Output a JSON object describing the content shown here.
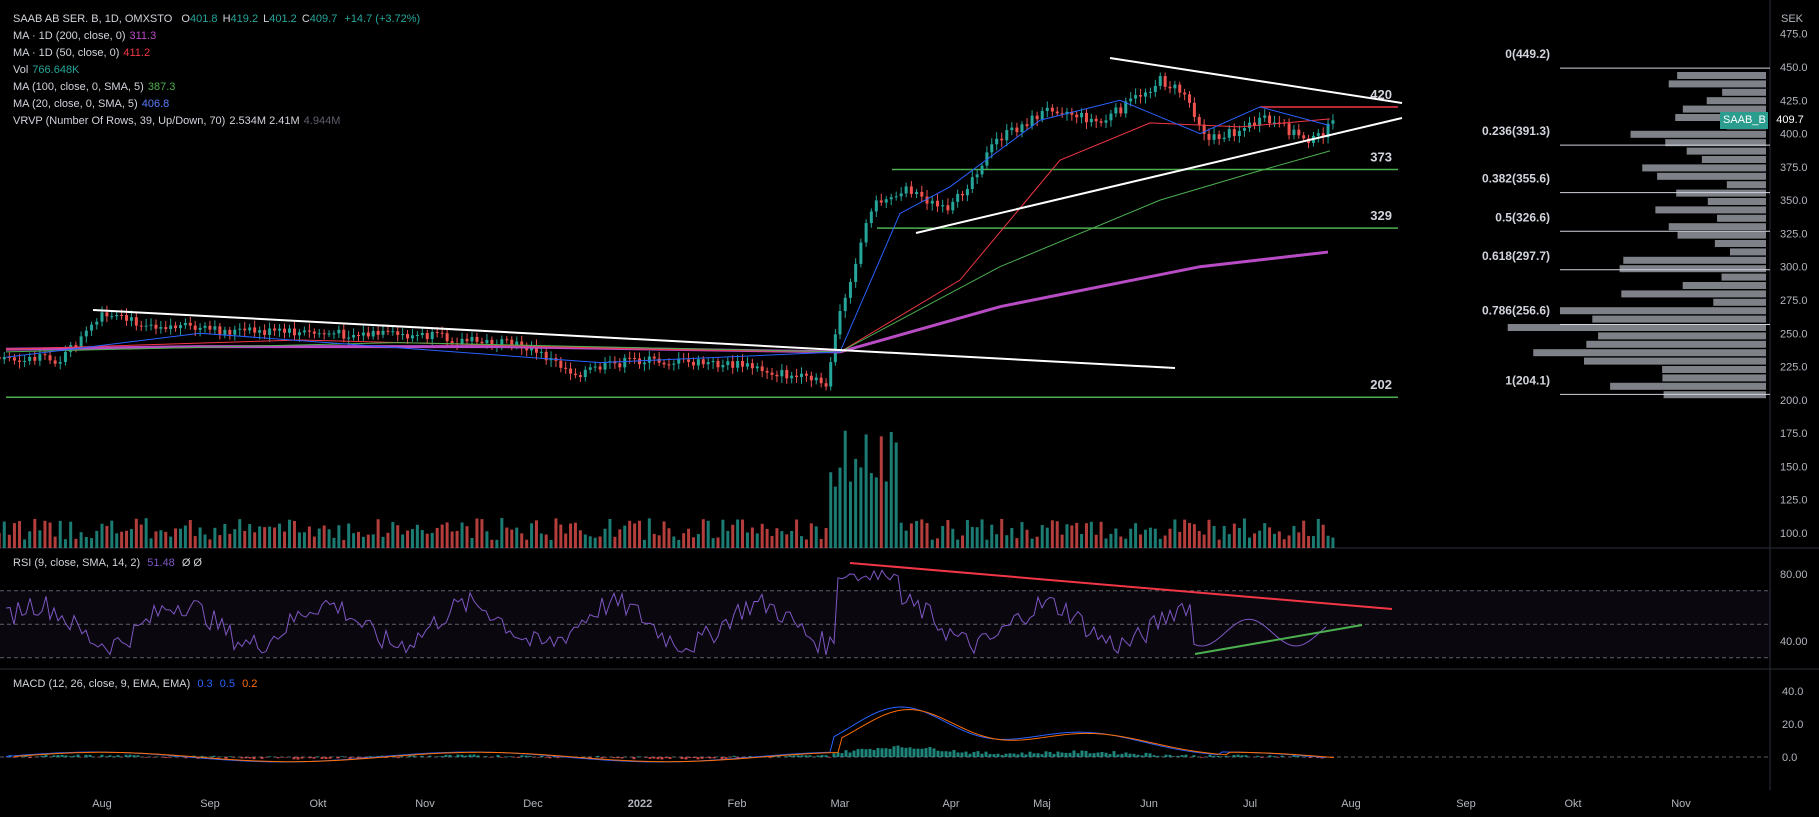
{
  "header": {
    "symbol": "SAAB AB SER. B, 1D, OMXSTO",
    "open_label": "O",
    "open": "401.8",
    "high_label": "H",
    "high": "419.2",
    "low_label": "L",
    "low": "401.2",
    "close_label": "C",
    "close": "409.7",
    "change": "+14.7 (+3.72%)"
  },
  "indicators": [
    {
      "label": "MA · 1D (200, close, 0)",
      "value": "311.3",
      "color": "#b84cc4"
    },
    {
      "label": "MA · 1D (50, close, 0)",
      "value": "411.2",
      "color": "#f23645"
    },
    {
      "label": "Vol",
      "value": "766.648K",
      "color": "#26a69a"
    },
    {
      "label": "MA (100, close, 0, SMA, 5)",
      "value": "387.3",
      "color": "#4caf50"
    },
    {
      "label": "MA (20, close, 0, SMA, 5)",
      "value": "406.8",
      "color": "#2962ff"
    },
    {
      "label": "VRVP (Number Of Rows, 39, Up/Down, 70)",
      "value": "2.534M  2.41M",
      "value2": "4.944M",
      "color": "#d1d4dc"
    }
  ],
  "rsi_legend": {
    "label": "RSI (9, close, SMA, 14, 2)",
    "value": "51.48",
    "extra": "Ø  Ø"
  },
  "macd_legend": {
    "label": "MACD (12, 26, close, 9, EMA, EMA)",
    "v1": "0.3",
    "v2": "0.5",
    "v3": "0.2"
  },
  "price_badge": {
    "symbol": "SAAB_B",
    "price": "409.7"
  },
  "currency": "SEK",
  "chart_data": {
    "type": "line",
    "price_axis": {
      "ticks": [
        475,
        450,
        425,
        400,
        375,
        350,
        325,
        300,
        275,
        250,
        225,
        200,
        175,
        150,
        125,
        100
      ],
      "tick_labels": [
        "475.0",
        "450.0",
        "425.0",
        "400.0",
        "375.0",
        "350.0",
        "325.0",
        "300.0",
        "275.0",
        "250.0",
        "225.0",
        "200.0",
        "175.0",
        "150.0",
        "125.0",
        "100.0"
      ]
    },
    "x_axis": {
      "labels": [
        "Aug",
        "Sep",
        "Okt",
        "Nov",
        "Dec",
        "2022",
        "Feb",
        "Mar",
        "Apr",
        "Maj",
        "Jun",
        "Jul",
        "Aug",
        "Sep",
        "Okt",
        "Nov"
      ]
    },
    "price_series": {
      "name": "SAAB_B close",
      "x": [
        "2021-07-01",
        "2021-07-20",
        "2021-08-01",
        "2021-09-01",
        "2021-10-01",
        "2021-11-01",
        "2021-12-01",
        "2021-12-15",
        "2022-01-01",
        "2022-02-01",
        "2022-02-25",
        "2022-03-01",
        "2022-03-10",
        "2022-03-20",
        "2022-04-01",
        "2022-04-15",
        "2022-05-01",
        "2022-05-15",
        "2022-06-01",
        "2022-06-08",
        "2022-06-15",
        "2022-07-01",
        "2022-07-15",
        "2022-07-22"
      ],
      "y": [
        232,
        230,
        262,
        252,
        250,
        248,
        240,
        220,
        230,
        226,
        212,
        265,
        345,
        360,
        340,
        395,
        420,
        408,
        440,
        430,
        395,
        410,
        395,
        409.7
      ]
    },
    "horizontal_levels": [
      {
        "label": "420",
        "value": 420,
        "color": "#f23645"
      },
      {
        "label": "373",
        "value": 373,
        "color": "#4caf50"
      },
      {
        "label": "329",
        "value": 329,
        "color": "#4caf50"
      },
      {
        "label": "202",
        "value": 202,
        "color": "#4caf50"
      }
    ],
    "fibonacci": [
      {
        "label": "0(449.2)",
        "value": 449.2
      },
      {
        "label": "0.236(391.3)",
        "value": 391.3
      },
      {
        "label": "0.382(355.6)",
        "value": 355.6
      },
      {
        "label": "0.5(326.6)",
        "value": 326.6
      },
      {
        "label": "0.618(297.7)",
        "value": 297.7
      },
      {
        "label": "0.786(256.6)",
        "value": 256.6
      },
      {
        "label": "1(204.1)",
        "value": 204.1
      }
    ],
    "rsi_axis": {
      "ticks": [
        80,
        40
      ],
      "tick_labels": [
        "80.00",
        "40.00"
      ]
    },
    "macd_axis": {
      "ticks": [
        40,
        20,
        0
      ],
      "tick_labels": [
        "40.0",
        "20.0",
        "0.0"
      ]
    }
  }
}
